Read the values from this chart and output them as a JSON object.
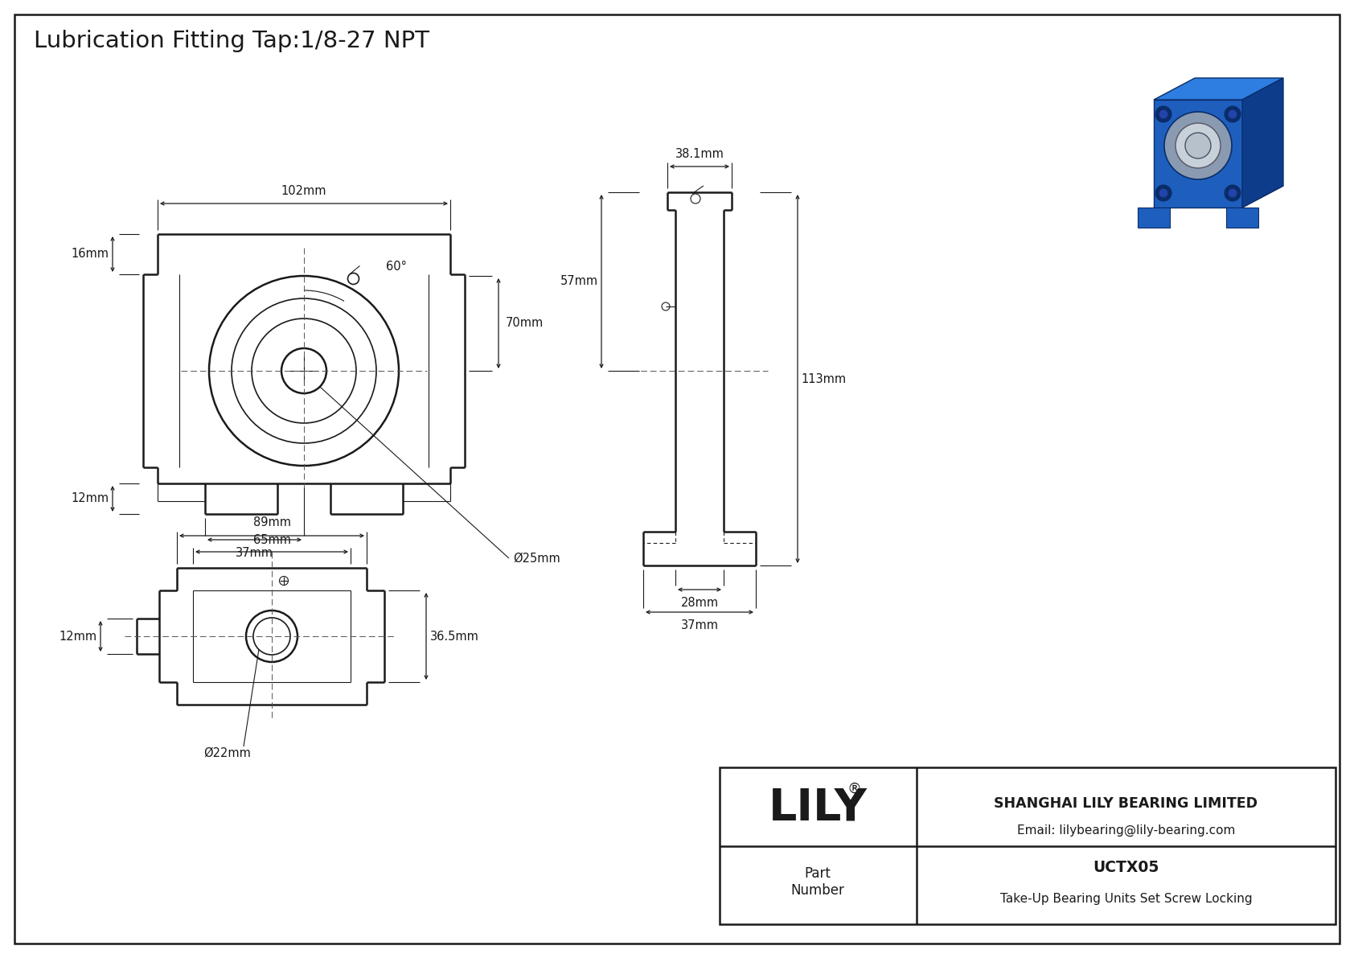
{
  "title": "Lubrication Fitting Tap:1/8-27 NPT",
  "bg_color": "#ffffff",
  "line_color": "#1a1a1a",
  "fig_width": 16.84,
  "fig_height": 11.91,
  "company": "SHANGHAI LILY BEARING LIMITED",
  "email": "Email: lilybearing@lily-bearing.com",
  "part_number_label": "Part\nNumber",
  "part_number": "UCTX05",
  "part_desc": "Take-Up Bearing Units Set Screw Locking",
  "lily_brand": "LILY",
  "dims": {
    "front_width": "102mm",
    "front_height_left": "16mm",
    "front_height_bottom": "12mm",
    "front_shaft_dia": "Ø25mm",
    "front_half_width": "37mm",
    "front_bearing_height": "70mm",
    "front_angle": "60°",
    "side_top": "38.1mm",
    "side_mid": "57mm",
    "side_total": "113mm",
    "side_bottom1": "28mm",
    "side_bottom2": "37mm",
    "bottom_total": "89mm",
    "bottom_inner": "65mm",
    "bottom_height": "36.5mm",
    "bottom_shaft_dia": "Ø22mm",
    "bottom_left_ext": "12mm"
  },
  "iso_color_front": "#1e5fbe",
  "iso_color_top": "#2e7de0",
  "iso_color_right": "#0d3d8a",
  "iso_color_dark": "#0a2d6a",
  "iso_color_gray": "#8a9ab0",
  "iso_color_silver": "#c8d0da",
  "iso_color_light": "#dde4ee"
}
